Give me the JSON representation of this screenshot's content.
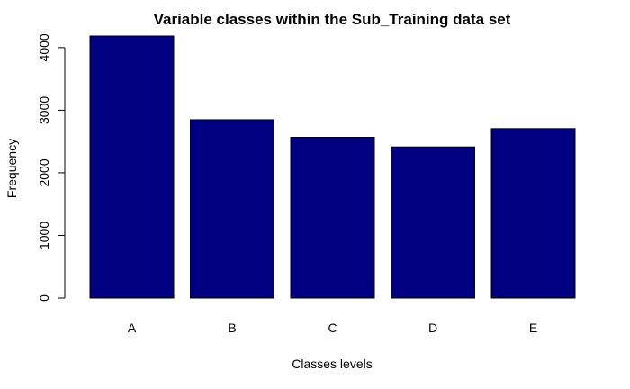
{
  "chart_data": {
    "type": "bar",
    "title": "Variable classes within the Sub_Training data set",
    "xlabel": "Classes levels",
    "ylabel": "Frequency",
    "categories": [
      "A",
      "B",
      "C",
      "D",
      "E"
    ],
    "values": [
      4185,
      2848,
      2567,
      2413,
      2706
    ],
    "ylim": [
      0,
      4185
    ],
    "yticks": [
      0,
      1000,
      2000,
      3000,
      4000
    ],
    "grid": false,
    "bar_color": "#000080",
    "bar_border_color": "#000000"
  }
}
